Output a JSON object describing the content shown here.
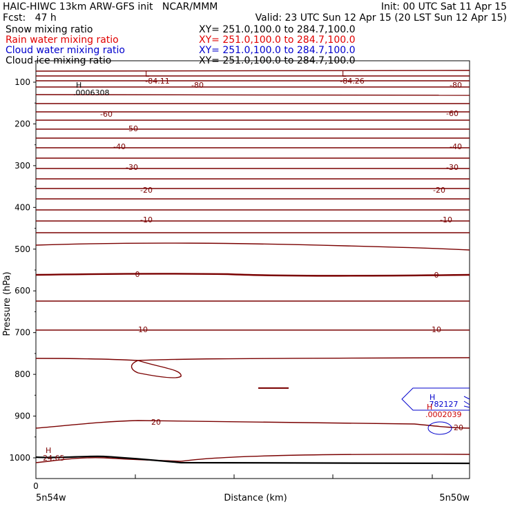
{
  "header": {
    "line1_left": "HAIC-HIWC 13km ARW-GFS init   NCAR/MMM",
    "line1_right": "Init: 00 UTC Sat 11 Apr 15",
    "line2_left": "Fcst:   47 h",
    "line2_right": "Valid: 23 UTC Sun 12 Apr 15 (20 LST Sun 12 Apr 15)",
    "fields": [
      {
        "name": "Snow mixing ratio",
        "xy": "XY= 251.0,100.0 to 284.7,100.0",
        "color": "#000000"
      },
      {
        "name": "Rain water mixing ratio",
        "xy": "XY= 251.0,100.0 to 284.7,100.0",
        "color": "#e00000"
      },
      {
        "name": "Cloud water mixing ratio",
        "xy": "XY= 251.0,100.0 to 284.7,100.0",
        "color": "#0000cc"
      },
      {
        "name": "Cloud ice mixing ratio",
        "xy": "XY= 251.0,100.0 to 284.7,100.0",
        "color": "#000000"
      }
    ]
  },
  "chart_data": {
    "type": "contour-cross-section",
    "ylabel": "Pressure (hPa)",
    "xlabel": "Distance (km)",
    "y_ticks": [
      100,
      200,
      300,
      400,
      500,
      600,
      700,
      800,
      900,
      1000
    ],
    "x_zero_label": "0",
    "x_left_label": "5n54w",
    "x_right_label": "5n50w",
    "temperature_labels": [
      "-84.11",
      "-84.26",
      "-80",
      "-60",
      "-50",
      "-40",
      "-30",
      "-20",
      "-10",
      "0",
      "10",
      "20"
    ],
    "extrema_labels": {
      "H": "H",
      "L": "L"
    },
    "top_left_high_value": ".0006308",
    "cloud_water_max": ".782127",
    "rain_water_max": ".0002039",
    "surface_high_value": "24.65",
    "colors": {
      "temperature": "#7a0000",
      "cloud_water": "#0000cc",
      "rain": "#cc0000",
      "surface": "#000000"
    }
  }
}
